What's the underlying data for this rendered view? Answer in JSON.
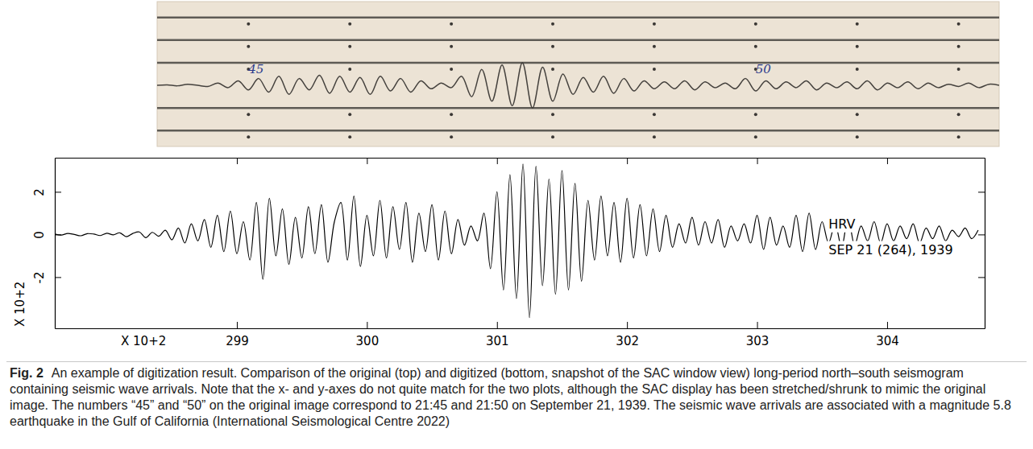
{
  "chart_data": [
    {
      "type": "line",
      "tick_labels": false,
      "xlim": [
        44.1,
        52.4
      ],
      "ylim": [
        0.3,
        6.7
      ],
      "xticks": [
        45,
        46,
        47,
        48,
        49,
        50,
        51,
        52
      ],
      "series": [
        {
          "color": "#3b3835",
          "x": [
            44.1,
            52.4
          ],
          "values": [
            6,
            6
          ]
        },
        {
          "color": "#3b3835",
          "x": [
            44.1,
            52.4
          ],
          "values": [
            5,
            5
          ]
        },
        {
          "color": "#3b3835",
          "x": [
            44.1,
            52.4
          ],
          "values": [
            4,
            4
          ]
        },
        {
          "color": "#3b3835",
          "x": [
            44.1,
            44.2,
            44.3,
            44.4,
            44.5,
            44.6,
            44.7,
            44.8,
            44.9,
            45,
            45.1,
            45.2,
            45.3,
            45.4,
            45.5,
            45.6,
            45.7,
            45.8,
            45.9,
            46,
            46.1,
            46.2,
            46.3,
            46.4,
            46.5,
            46.6,
            46.7,
            46.8,
            46.9,
            47,
            47.1,
            47.2,
            47.3,
            47.4,
            47.5,
            47.6,
            47.7,
            47.8,
            47.9,
            48,
            48.1,
            48.2,
            48.3,
            48.4,
            48.5,
            48.6,
            48.7,
            48.8,
            48.9,
            49,
            49.1,
            49.2,
            49.3,
            49.4,
            49.5,
            49.6,
            49.7,
            49.8,
            49.9,
            50,
            50.1,
            50.2,
            50.3,
            50.4,
            50.5,
            50.6,
            50.7,
            50.8,
            50.9,
            51,
            51.1,
            51.2,
            51.3,
            51.4,
            51.5,
            51.6,
            51.7,
            51.8,
            51.9,
            52,
            52.1,
            52.2,
            52.3,
            52.4
          ],
          "values": [
            3.0,
            3.02,
            2.98,
            3.05,
            3.0,
            2.95,
            3.1,
            2.9,
            3.2,
            2.8,
            3.3,
            2.7,
            3.4,
            2.6,
            3.3,
            2.8,
            3.45,
            2.65,
            3.4,
            2.7,
            3.35,
            2.6,
            3.4,
            2.75,
            3.3,
            2.7,
            3.2,
            2.85,
            3.1,
            2.9,
            3.4,
            2.5,
            3.7,
            2.3,
            3.9,
            2.1,
            4.0,
            2.0,
            3.8,
            2.3,
            3.5,
            2.6,
            3.35,
            2.7,
            3.4,
            2.65,
            3.3,
            2.75,
            3.2,
            2.85,
            3.15,
            2.85,
            3.2,
            2.8,
            3.15,
            2.9,
            3.1,
            2.85,
            3.3,
            2.75,
            3.2,
            2.85,
            3.15,
            2.9,
            3.2,
            2.8,
            3.1,
            2.9,
            3.15,
            2.85,
            3.2,
            2.8,
            3.1,
            2.9,
            3.15,
            2.85,
            3.1,
            2.9,
            3.05,
            2.95,
            3.1,
            2.9,
            3.05,
            3.0
          ]
        },
        {
          "color": "#3b3835",
          "x": [
            44.1,
            52.4
          ],
          "values": [
            2,
            2
          ]
        },
        {
          "color": "#3b3835",
          "x": [
            44.1,
            52.4
          ],
          "values": [
            1,
            1
          ]
        }
      ],
      "annotations": [
        {
          "text": "45",
          "x": 45,
          "y": 3.55
        },
        {
          "text": "50",
          "x": 50,
          "y": 3.55
        }
      ]
    },
    {
      "type": "line",
      "xlabel": "X 10+2",
      "ylabel": "X 10+2",
      "xlim": [
        297.6,
        304.75
      ],
      "ylim": [
        -4.4,
        3.6
      ],
      "xticks": [
        299,
        300,
        301,
        302,
        303,
        304
      ],
      "yticks": [
        -2,
        0,
        2
      ],
      "x": [
        297.6,
        297.65,
        297.7,
        297.75,
        297.8,
        297.85,
        297.9,
        297.95,
        298,
        298.05,
        298.1,
        298.15,
        298.2,
        298.25,
        298.3,
        298.35,
        298.4,
        298.45,
        298.5,
        298.55,
        298.6,
        298.65,
        298.7,
        298.75,
        298.8,
        298.85,
        298.9,
        298.95,
        299,
        299.05,
        299.1,
        299.15,
        299.2,
        299.25,
        299.3,
        299.35,
        299.4,
        299.45,
        299.5,
        299.55,
        299.6,
        299.65,
        299.7,
        299.75,
        299.8,
        299.85,
        299.9,
        299.95,
        300,
        300.05,
        300.1,
        300.15,
        300.2,
        300.25,
        300.3,
        300.35,
        300.4,
        300.45,
        300.5,
        300.55,
        300.6,
        300.65,
        300.7,
        300.75,
        300.8,
        300.85,
        300.9,
        300.95,
        301,
        301.05,
        301.1,
        301.15,
        301.2,
        301.25,
        301.3,
        301.35,
        301.4,
        301.45,
        301.5,
        301.55,
        301.6,
        301.65,
        301.7,
        301.75,
        301.8,
        301.85,
        301.9,
        301.95,
        302,
        302.05,
        302.1,
        302.15,
        302.2,
        302.25,
        302.3,
        302.35,
        302.4,
        302.45,
        302.5,
        302.55,
        302.6,
        302.65,
        302.7,
        302.75,
        302.8,
        302.85,
        302.9,
        302.95,
        303,
        303.05,
        303.1,
        303.15,
        303.2,
        303.25,
        303.3,
        303.35,
        303.4,
        303.45,
        303.5,
        303.55,
        303.6,
        303.65,
        303.7,
        303.75,
        303.8,
        303.85,
        303.9,
        303.95,
        304,
        304.05,
        304.1,
        304.15,
        304.2,
        304.25,
        304.3,
        304.35,
        304.4,
        304.45,
        304.5,
        304.55,
        304.6,
        304.65,
        304.7
      ],
      "series": [
        {
          "color": "#000000",
          "values": [
            0.02,
            -0.03,
            0.05,
            0.0,
            -0.06,
            0.04,
            0.02,
            -0.05,
            0.06,
            -0.02,
            0.08,
            -0.1,
            0.05,
            0.12,
            -0.15,
            0.1,
            -0.08,
            0.2,
            -0.25,
            0.3,
            -0.4,
            0.5,
            -0.3,
            0.7,
            -0.6,
            0.9,
            -0.8,
            1.1,
            -0.9,
            0.6,
            -1.2,
            1.5,
            -2.1,
            1.7,
            -1.0,
            1.2,
            -1.4,
            0.8,
            -1.1,
            1.3,
            -0.9,
            1.4,
            -1.3,
            0.6,
            1.5,
            -1.2,
            1.8,
            -1.5,
            0.9,
            -1.0,
            1.6,
            -1.1,
            1.3,
            -0.7,
            1.5,
            -1.3,
            1.0,
            -0.8,
            1.4,
            -1.2,
            1.1,
            -0.9,
            0.7,
            -0.5,
            0.4,
            -0.3,
            1.0,
            -1.6,
            2.0,
            -2.6,
            2.8,
            -3.0,
            3.3,
            -3.9,
            3.2,
            -2.4,
            2.6,
            -2.8,
            3.0,
            -2.6,
            2.4,
            -2.2,
            1.6,
            -1.2,
            1.8,
            -1.0,
            1.5,
            -1.3,
            1.7,
            -1.1,
            1.4,
            -1.0,
            1.2,
            -0.8,
            0.9,
            -0.6,
            0.5,
            -0.4,
            0.8,
            -0.5,
            0.6,
            -0.4,
            0.7,
            -0.6,
            0.4,
            -0.3,
            0.5,
            -0.4,
            0.9,
            -0.7,
            0.8,
            -0.5,
            0.4,
            -0.6,
            0.9,
            -0.8,
            1.0,
            -0.7,
            0.6,
            -0.4,
            0.5,
            -0.6,
            0.8,
            -0.5,
            0.4,
            -0.3,
            0.6,
            -0.4,
            0.5,
            -0.3,
            0.4,
            -0.2,
            0.5,
            -0.4,
            0.3,
            -0.2,
            0.4,
            -0.3,
            0.2,
            -0.1,
            0.3,
            -0.2,
            0.2
          ]
        }
      ],
      "annotations": [
        {
          "text": "HRV",
          "x": 303.55,
          "y": 0.5
        },
        {
          "text": "SEP 21 (264), 1939",
          "x": 303.55,
          "y": -0.7
        }
      ]
    }
  ],
  "caption": {
    "label": "Fig. 2",
    "text": "An example of digitization result. Comparison of the original (top) and digitized (bottom, snapshot of the SAC window view) long-period north–south seismogram containing seismic wave arrivals. Note that the x- and y-axes do not quite match for the two plots, although the SAC display has been stretched/shrunk to mimic the original image. The numbers “45” and “50” on the original image correspond to 21:45 and 21:50 on September 21, 1939. The seismic wave arrivals are associated with a magnitude 5.8 earthquake in the Gulf of California (International Seismological Centre 2022)"
  }
}
